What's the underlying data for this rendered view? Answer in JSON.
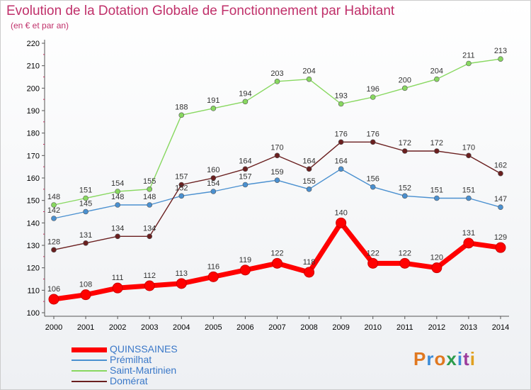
{
  "header": {
    "title": "Evolution de la Dotation Globale de Fonctionnement par Habitant",
    "subtitle": "(en € et par an)"
  },
  "logo": {
    "text": "Proxiti",
    "colors": [
      "#e07820",
      "#3c8cd8",
      "#e07820",
      "#2c9c4c",
      "#3c8cd8",
      "#9c3c9c",
      "#e0a020"
    ]
  },
  "chart_data": {
    "type": "line",
    "title": "Evolution de la Dotation Globale de Fonctionnement par Habitant",
    "subtitle": "(en € et par an)",
    "xlabel": "",
    "ylabel": "",
    "ylim": [
      100,
      220
    ],
    "ytick_step": 10,
    "grid": false,
    "legend_position": "bottom-left",
    "x": [
      "2000",
      "2001",
      "2002",
      "2003",
      "2004",
      "2005",
      "2006",
      "2007",
      "2008",
      "2009",
      "2010",
      "2011",
      "2012",
      "2013",
      "2014"
    ],
    "series": [
      {
        "name": "QUINSSAINES",
        "color": "#ff0000",
        "emphasis": true,
        "values": [
          106,
          108,
          111,
          112,
          113,
          116,
          119,
          122,
          118,
          140,
          122,
          122,
          120,
          131,
          129
        ]
      },
      {
        "name": "Prémilhat",
        "color": "#4a90d0",
        "emphasis": false,
        "values": [
          142,
          145,
          148,
          148,
          152,
          154,
          157,
          159,
          155,
          164,
          156,
          152,
          151,
          151,
          147
        ]
      },
      {
        "name": "Saint-Martinien",
        "color": "#88d860",
        "emphasis": false,
        "values": [
          148,
          151,
          154,
          155,
          188,
          191,
          194,
          203,
          204,
          193,
          196,
          200,
          204,
          211,
          213
        ]
      },
      {
        "name": "Domérat",
        "color": "#6a1f1f",
        "emphasis": false,
        "values": [
          128,
          131,
          134,
          134,
          157,
          160,
          164,
          170,
          164,
          176,
          176,
          172,
          172,
          170,
          162
        ]
      }
    ]
  }
}
